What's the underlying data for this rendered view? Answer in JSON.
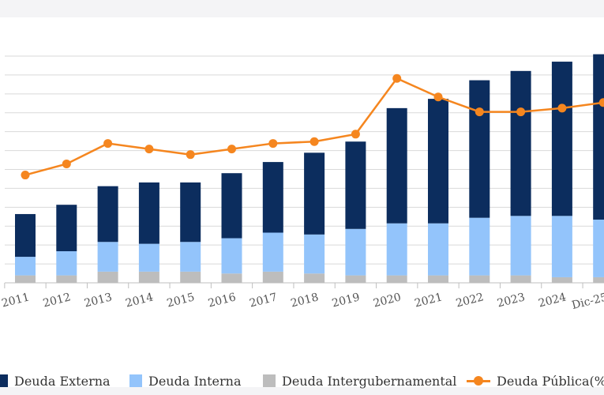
{
  "chart_data": {
    "type": "bar",
    "stacked": true,
    "categories": [
      "2011",
      "2012",
      "2013",
      "2014",
      "2015",
      "2016",
      "2017",
      "2018",
      "2019",
      "2020",
      "2021",
      "2022",
      "2023",
      "2024",
      "Dic-25"
    ],
    "series": [
      {
        "name": "Deuda Intergubernamental",
        "type": "bar",
        "color": "#bdbdbd",
        "values": [
          4,
          4,
          6,
          6,
          6,
          5,
          6,
          5,
          4,
          4,
          4,
          4,
          4,
          3,
          3
        ]
      },
      {
        "name": "Deuda Interna",
        "type": "bar",
        "color": "#93c4fb",
        "values": [
          10,
          13,
          16,
          15,
          16,
          19,
          21,
          21,
          25,
          28,
          28,
          31,
          32,
          33,
          31
        ]
      },
      {
        "name": "Deuda Externa",
        "type": "bar",
        "color": "#0c2d5e",
        "values": [
          23,
          25,
          30,
          33,
          32,
          35,
          38,
          44,
          47,
          62,
          67,
          74,
          78,
          83,
          89
        ]
      },
      {
        "name": "Deuda Pública(%PIB)",
        "type": "line",
        "color": "#f5861f",
        "values": [
          58,
          64,
          75,
          72,
          69,
          72,
          75,
          76,
          80,
          110,
          100,
          92,
          92,
          94,
          97
        ]
      }
    ],
    "ylim": [
      0,
      122
    ],
    "grid": true,
    "legend_position": "bottom"
  },
  "legend": {
    "externa": "Deuda Externa",
    "interna": "Deuda Interna",
    "intergub": "Deuda Intergubernamental",
    "publica": "Deuda Pública(%PIB)"
  },
  "colors": {
    "externa": "#0c2d5e",
    "interna": "#93c4fb",
    "intergub": "#bdbdbd",
    "publica": "#f5861f",
    "grid": "#d9d9d9",
    "axis": "#bfbfbf"
  }
}
